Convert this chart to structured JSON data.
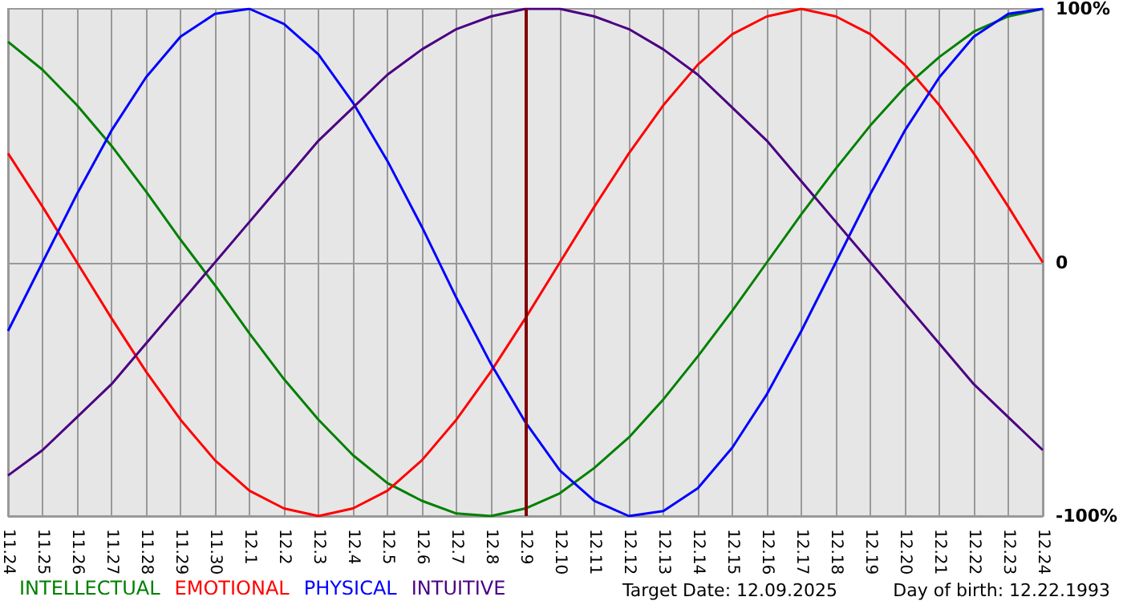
{
  "chart_data": {
    "type": "line",
    "categories": [
      "11.24",
      "11.25",
      "11.26",
      "11.27",
      "11.28",
      "11.29",
      "11.30",
      "12.1",
      "12.2",
      "12.3",
      "12.4",
      "12.5",
      "12.6",
      "12.7",
      "12.8",
      "12.9",
      "12.10",
      "12.11",
      "12.12",
      "12.13",
      "12.14",
      "12.15",
      "12.16",
      "12.17",
      "12.18",
      "12.19",
      "12.20",
      "12.21",
      "12.22",
      "12.23",
      "12.24"
    ],
    "series": [
      {
        "name": "INTELLECTUAL",
        "color": "#008000",
        "values": [
          87,
          76,
          62,
          46,
          28,
          9,
          -9,
          -28,
          -46,
          -62,
          -76,
          -87,
          -94,
          -99,
          -100,
          -97,
          -91,
          -81,
          -69,
          -54,
          -37,
          -19,
          0,
          19,
          37,
          54,
          69,
          81,
          91,
          97,
          100
        ]
      },
      {
        "name": "EMOTIONAL",
        "color": "#ff0000",
        "values": [
          43,
          22,
          0,
          -22,
          -43,
          -62,
          -78,
          -90,
          -97,
          -100,
          -97,
          -90,
          -78,
          -62,
          -43,
          -22,
          0,
          22,
          43,
          62,
          78,
          90,
          97,
          100,
          97,
          90,
          78,
          62,
          43,
          22,
          0
        ]
      },
      {
        "name": "PHYSICAL",
        "color": "#0000ff",
        "values": [
          -27,
          0,
          27,
          52,
          73,
          89,
          98,
          100,
          94,
          82,
          63,
          40,
          14,
          -14,
          -40,
          -63,
          -82,
          -94,
          -100,
          -98,
          -89,
          -73,
          -52,
          -27,
          0,
          27,
          52,
          73,
          89,
          98,
          100
        ]
      },
      {
        "name": "INTUITIVE",
        "color": "#4b0082",
        "values": [
          -84,
          -74,
          -61,
          -48,
          -32,
          -16,
          0,
          16,
          32,
          48,
          61,
          74,
          84,
          92,
          97,
          100,
          100,
          97,
          92,
          84,
          74,
          61,
          48,
          32,
          16,
          0,
          -16,
          -32,
          -48,
          -61,
          -74
        ]
      }
    ],
    "ylim": [
      -100,
      100
    ],
    "yticks": [
      {
        "value": -100,
        "label": "-100%"
      },
      0,
      {
        "value": 100,
        "label": "100%"
      }
    ],
    "ref_lines": [
      {
        "axis": "x",
        "value": "12.9",
        "color": "#800000"
      }
    ],
    "annotations": [
      "Target Date: 12.09.2025",
      "Day of birth: 12.22.1993"
    ],
    "grid": true,
    "legend": "bottom left",
    "marker": "none",
    "line_style": "solid"
  }
}
